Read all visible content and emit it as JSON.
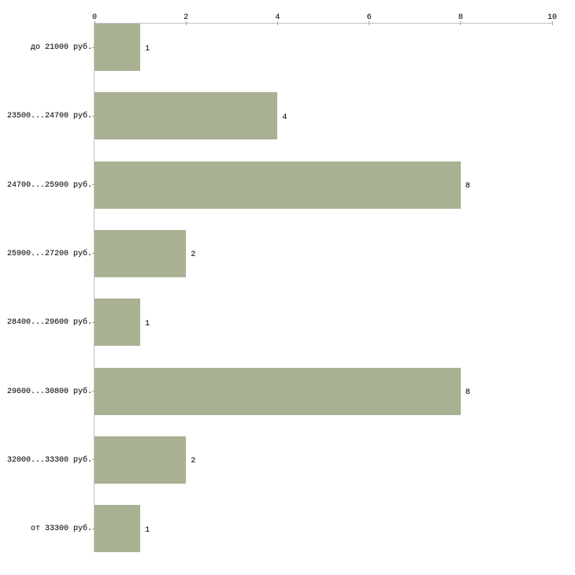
{
  "chart_data": {
    "type": "bar",
    "orientation": "horizontal",
    "categories": [
      "до 21000 руб.",
      "23500...24700 руб.",
      "24700...25900 руб.",
      "25900...27200 руб.",
      "28400...29600 руб.",
      "29600...30800 руб.",
      "32000...33300 руб.",
      "от 33300 руб."
    ],
    "values": [
      1,
      4,
      8,
      2,
      1,
      8,
      2,
      1
    ],
    "value_labels": [
      "1",
      "4",
      "8",
      "2",
      "1",
      "8",
      "2",
      "1"
    ],
    "xlabel": "",
    "ylabel": "",
    "title": "",
    "x_axis": {
      "position": "top",
      "ticks": [
        0,
        2,
        4,
        6,
        8,
        10
      ],
      "tick_labels": [
        "0",
        "2",
        "4",
        "6",
        "8",
        "10"
      ],
      "range": [
        0,
        10
      ]
    },
    "grid": false,
    "legend": false,
    "colors": {
      "bar_fill": "#a9b193",
      "axis_line": "#c2c2c2",
      "tick_mark": "#a8a863",
      "text": "#1c1c1c",
      "background": "#ffffff"
    }
  }
}
